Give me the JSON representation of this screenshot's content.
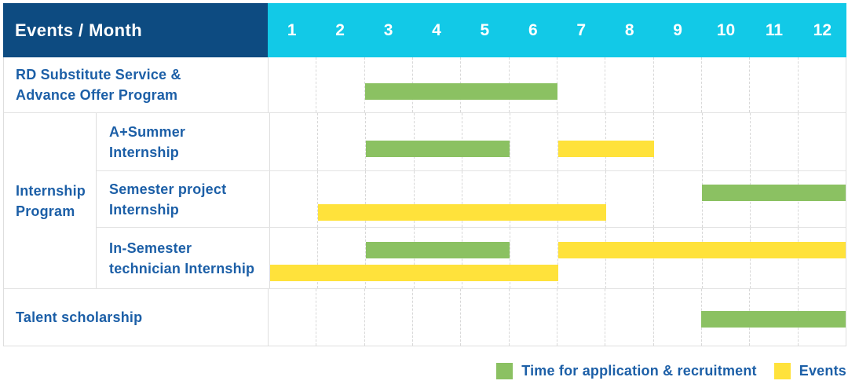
{
  "chart_data": {
    "type": "bar",
    "subtype": "gantt-timeline",
    "corner_label": "Events / Month",
    "x_axis_unit": "month",
    "months": [
      "1",
      "2",
      "3",
      "4",
      "5",
      "6",
      "7",
      "8",
      "9",
      "10",
      "11",
      "12"
    ],
    "x_range": [
      1,
      12
    ],
    "grid": "dashed-vertical-month-lines",
    "legend_position": "bottom-right",
    "series": [
      {
        "key": "recruitment",
        "label": "Time for application & recruitment",
        "color": "#8bc162"
      },
      {
        "key": "events",
        "label": "Events",
        "color": "#ffe23b"
      }
    ],
    "group_labels": {
      "internship-program": [
        "Internship",
        "Program"
      ]
    },
    "rows": [
      {
        "id": "rd-substitute-service",
        "label_lines": [
          "RD Substitute Service &",
          "Advance Offer Program"
        ],
        "group": null,
        "bars": [
          {
            "series": "recruitment",
            "start_month": 3,
            "end_month": 6,
            "line": 1
          }
        ]
      },
      {
        "id": "a-plus-summer-internship",
        "label_lines": [
          "A+Summer",
          "Internship"
        ],
        "group": "internship-program",
        "bars": [
          {
            "series": "recruitment",
            "start_month": 3,
            "end_month": 5,
            "line": 1
          },
          {
            "series": "events",
            "start_month": 7,
            "end_month": 8,
            "line": 1
          }
        ]
      },
      {
        "id": "semester-project-internship",
        "label_lines": [
          "Semester project",
          "Internship"
        ],
        "group": "internship-program",
        "bars": [
          {
            "series": "recruitment",
            "start_month": 10,
            "end_month": 12,
            "line": 1
          },
          {
            "series": "events",
            "start_month": 2,
            "end_month": 7,
            "line": 2
          }
        ]
      },
      {
        "id": "in-semester-technician-internship",
        "label_lines": [
          "In-Semester",
          "technician Internship"
        ],
        "group": "internship-program",
        "bars": [
          {
            "series": "recruitment",
            "start_month": 3,
            "end_month": 5,
            "line": 1
          },
          {
            "series": "events",
            "start_month": 7,
            "end_month": 12,
            "line": 1
          },
          {
            "series": "events",
            "start_month": 1,
            "end_month": 6,
            "line": 2
          }
        ]
      },
      {
        "id": "talent-scholarship",
        "label_lines": [
          "Talent scholarship"
        ],
        "group": null,
        "bars": [
          {
            "series": "recruitment",
            "start_month": 10,
            "end_month": 12,
            "line": 1
          }
        ]
      }
    ]
  },
  "colors": {
    "header_bg_navy": "#0d4b81",
    "months_bg_cyan": "#12c9e7",
    "header_text": "#ffffff",
    "row_label_blue": "#1c5fa7",
    "recruitment_green": "#8bc162",
    "events_yellow": "#ffe23b",
    "grid_dashed_line": "#d8d8d8",
    "row_border": "#e3e3e3"
  }
}
